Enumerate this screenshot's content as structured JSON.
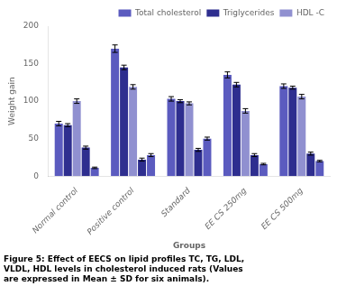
{
  "chart_data": {
    "type": "bar",
    "categories": [
      "Normal control",
      "Positive control",
      "Standard",
      "EE CS 250mg",
      "EE CS 500mg"
    ],
    "series": [
      {
        "name": "Total cholesterol",
        "color": "#5b5bbf",
        "values": [
          70,
          170,
          103,
          135,
          120
        ],
        "errors": [
          3,
          5,
          3,
          4,
          3
        ]
      },
      {
        "name": "Triglycerides",
        "color": "#2e2e8f",
        "values": [
          68,
          145,
          100,
          122,
          118
        ],
        "errors": [
          2,
          3,
          2,
          3,
          2
        ]
      },
      {
        "name": "HDL -C",
        "color": "#9090d0",
        "values": [
          100,
          119,
          97,
          87,
          106
        ],
        "errors": [
          3,
          3,
          2,
          3,
          3
        ]
      },
      {
        "name": null,
        "color": "#2e2e8f",
        "values": [
          38,
          22,
          35,
          28,
          30
        ],
        "errors": [
          2,
          2,
          2,
          2,
          2
        ]
      },
      {
        "name": null,
        "color": "#5b5bbf",
        "values": [
          11,
          28,
          50,
          16,
          20
        ],
        "errors": [
          1,
          2,
          2,
          1,
          1
        ]
      }
    ],
    "ylabel": "Weight gain",
    "xlabel": "Groups",
    "ylim": [
      0,
      200
    ],
    "yticks": [
      0,
      50,
      100,
      150,
      200
    ],
    "legend": "upper right",
    "grid": false,
    "caption": "Figure 5: Effect of EECS on lipid profiles TC, TG, LDL,\nVLDL, HDL levels in cholesterol induced rats (Values\nare expressed in Mean ± SD for six animals)."
  }
}
